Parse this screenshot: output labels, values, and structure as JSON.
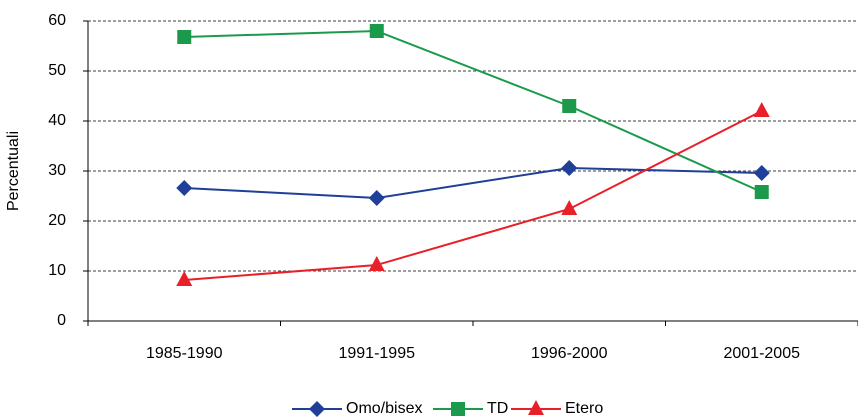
{
  "chart_data": {
    "type": "line",
    "y_label": "Percentuali",
    "categories": [
      "1985-1990",
      "1991-1995",
      "1996-2000",
      "2001-2005"
    ],
    "series": [
      {
        "name": "Omo/bisex",
        "color": "#1f3f99",
        "marker": "diamond",
        "values": [
          26.6,
          24.6,
          30.6,
          29.6
        ]
      },
      {
        "name": "TD",
        "color": "#1a9a4a",
        "marker": "square",
        "values": [
          56.8,
          58,
          43,
          25.8
        ]
      },
      {
        "name": "Etero",
        "color": "#e8202a",
        "marker": "triangle",
        "values": [
          8.2,
          11.2,
          22.4,
          42
        ]
      }
    ],
    "ylim": [
      0,
      60
    ],
    "yticks": [
      0,
      10,
      20,
      30,
      40,
      50,
      60
    ],
    "grid": true
  }
}
